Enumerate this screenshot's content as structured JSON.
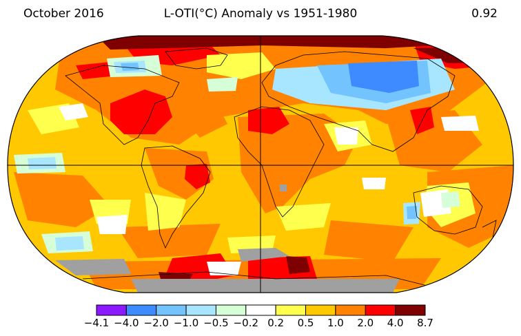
{
  "header": {
    "date": "October 2016",
    "title": "L-OTI(°C) Anomaly vs 1951-1980",
    "global_mean": "0.92"
  },
  "legend": {
    "bins": [
      {
        "from": "−4.1",
        "to": "−4.0",
        "color": "#8b1aff"
      },
      {
        "from": "−4.0",
        "to": "−2.0",
        "color": "#3d8bff"
      },
      {
        "from": "−2.0",
        "to": "−1.0",
        "color": "#73c3ff"
      },
      {
        "from": "−1.0",
        "to": "−0.5",
        "color": "#a8e6ff"
      },
      {
        "from": "−0.5",
        "to": "−0.2",
        "color": "#d7ffd7"
      },
      {
        "from": "−0.2",
        "to": "0.2",
        "color": "#ffffff"
      },
      {
        "from": "0.2",
        "to": "0.5",
        "color": "#ffff4d"
      },
      {
        "from": "0.5",
        "to": "1.0",
        "color": "#ffc800"
      },
      {
        "from": "1.0",
        "to": "2.0",
        "color": "#ff8200"
      },
      {
        "from": "2.0",
        "to": "4.0",
        "color": "#ff0000"
      },
      {
        "from": "4.0",
        "to": "8.7",
        "color": "#7f0000"
      }
    ],
    "labels": [
      "−4.1",
      "−4.0",
      "−2.0",
      "−1.0",
      "−0.5",
      "−0.2",
      "0.2",
      "0.5",
      "1.0",
      "2.0",
      "4.0",
      "8.7"
    ]
  },
  "map": {
    "projection": "robinson",
    "missing_data_color": "#a0a0a0",
    "background_color": "#ffc800"
  }
}
